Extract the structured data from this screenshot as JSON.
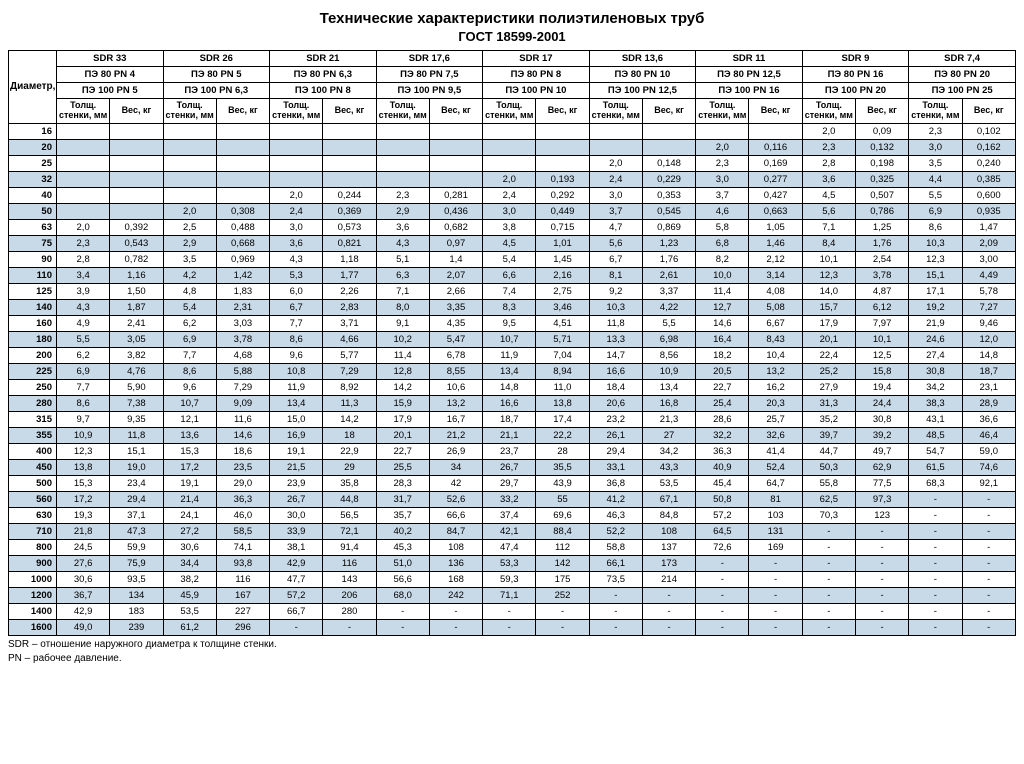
{
  "title": "Технические характеристики полиэтиленовых труб",
  "subtitle": "ГОСТ 18599-2001",
  "diam_label": "Диаметр, мм",
  "wall_label": "Толщ. стенки, мм",
  "weight_label": "Вес, кг",
  "footnote1": "SDR – отношение наружного диаметра к толщине стенки.",
  "footnote2": "PN – рабочее давление.",
  "colors": {
    "alt_row": "#c8d9e8",
    "border": "#000000",
    "bg": "#ffffff"
  },
  "groups": [
    {
      "sdr": "SDR 33",
      "pe80": "ПЭ 80 PN 4",
      "pe100": "ПЭ 100 PN 5"
    },
    {
      "sdr": "SDR 26",
      "pe80": "ПЭ 80 PN 5",
      "pe100": "ПЭ 100 PN 6,3"
    },
    {
      "sdr": "SDR 21",
      "pe80": "ПЭ 80 PN 6,3",
      "pe100": "ПЭ 100 PN 8"
    },
    {
      "sdr": "SDR 17,6",
      "pe80": "ПЭ 80 PN 7,5",
      "pe100": "ПЭ 100 PN 9,5"
    },
    {
      "sdr": "SDR 17",
      "pe80": "ПЭ 80 PN 8",
      "pe100": "ПЭ 100 PN 10"
    },
    {
      "sdr": "SDR 13,6",
      "pe80": "ПЭ 80 PN 10",
      "pe100": "ПЭ 100 PN 12,5"
    },
    {
      "sdr": "SDR 11",
      "pe80": "ПЭ 80 PN 12,5",
      "pe100": "ПЭ 100 PN 16"
    },
    {
      "sdr": "SDR 9",
      "pe80": "ПЭ 80 PN 16",
      "pe100": "ПЭ 100 PN 20"
    },
    {
      "sdr": "SDR 7,4",
      "pe80": "ПЭ 80 PN 20",
      "pe100": "ПЭ 100 PN 25"
    }
  ],
  "rows": [
    {
      "d": "16",
      "v": [
        "",
        "",
        "",
        "",
        "",
        "",
        "",
        "",
        "",
        "",
        "",
        "",
        "",
        "",
        "2,0",
        "0,09",
        "2,3",
        "0,102"
      ]
    },
    {
      "d": "20",
      "v": [
        "",
        "",
        "",
        "",
        "",
        "",
        "",
        "",
        "",
        "",
        "",
        "",
        "2,0",
        "0,116",
        "2,3",
        "0,132",
        "3,0",
        "0,162"
      ]
    },
    {
      "d": "25",
      "v": [
        "",
        "",
        "",
        "",
        "",
        "",
        "",
        "",
        "",
        "",
        "2,0",
        "0,148",
        "2,3",
        "0,169",
        "2,8",
        "0,198",
        "3,5",
        "0,240"
      ]
    },
    {
      "d": "32",
      "v": [
        "",
        "",
        "",
        "",
        "",
        "",
        "",
        "",
        "2,0",
        "0,193",
        "2,4",
        "0,229",
        "3,0",
        "0,277",
        "3,6",
        "0,325",
        "4,4",
        "0,385"
      ]
    },
    {
      "d": "40",
      "v": [
        "",
        "",
        "",
        "",
        "2,0",
        "0,244",
        "2,3",
        "0,281",
        "2,4",
        "0,292",
        "3,0",
        "0,353",
        "3,7",
        "0,427",
        "4,5",
        "0,507",
        "5,5",
        "0,600"
      ]
    },
    {
      "d": "50",
      "v": [
        "",
        "",
        "2,0",
        "0,308",
        "2,4",
        "0,369",
        "2,9",
        "0,436",
        "3,0",
        "0,449",
        "3,7",
        "0,545",
        "4,6",
        "0,663",
        "5,6",
        "0,786",
        "6,9",
        "0,935"
      ]
    },
    {
      "d": "63",
      "v": [
        "2,0",
        "0,392",
        "2,5",
        "0,488",
        "3,0",
        "0,573",
        "3,6",
        "0,682",
        "3,8",
        "0,715",
        "4,7",
        "0,869",
        "5,8",
        "1,05",
        "7,1",
        "1,25",
        "8,6",
        "1,47"
      ]
    },
    {
      "d": "75",
      "v": [
        "2,3",
        "0,543",
        "2,9",
        "0,668",
        "3,6",
        "0,821",
        "4,3",
        "0,97",
        "4,5",
        "1,01",
        "5,6",
        "1,23",
        "6,8",
        "1,46",
        "8,4",
        "1,76",
        "10,3",
        "2,09"
      ]
    },
    {
      "d": "90",
      "v": [
        "2,8",
        "0,782",
        "3,5",
        "0,969",
        "4,3",
        "1,18",
        "5,1",
        "1,4",
        "5,4",
        "1,45",
        "6,7",
        "1,76",
        "8,2",
        "2,12",
        "10,1",
        "2,54",
        "12,3",
        "3,00"
      ]
    },
    {
      "d": "110",
      "v": [
        "3,4",
        "1,16",
        "4,2",
        "1,42",
        "5,3",
        "1,77",
        "6,3",
        "2,07",
        "6,6",
        "2,16",
        "8,1",
        "2,61",
        "10,0",
        "3,14",
        "12,3",
        "3,78",
        "15,1",
        "4,49"
      ]
    },
    {
      "d": "125",
      "v": [
        "3,9",
        "1,50",
        "4,8",
        "1,83",
        "6,0",
        "2,26",
        "7,1",
        "2,66",
        "7,4",
        "2,75",
        "9,2",
        "3,37",
        "11,4",
        "4,08",
        "14,0",
        "4,87",
        "17,1",
        "5,78"
      ]
    },
    {
      "d": "140",
      "v": [
        "4,3",
        "1,87",
        "5,4",
        "2,31",
        "6,7",
        "2,83",
        "8,0",
        "3,35",
        "8,3",
        "3,46",
        "10,3",
        "4,22",
        "12,7",
        "5,08",
        "15,7",
        "6,12",
        "19,2",
        "7,27"
      ]
    },
    {
      "d": "160",
      "v": [
        "4,9",
        "2,41",
        "6,2",
        "3,03",
        "7,7",
        "3,71",
        "9,1",
        "4,35",
        "9,5",
        "4,51",
        "11,8",
        "5,5",
        "14,6",
        "6,67",
        "17,9",
        "7,97",
        "21,9",
        "9,46"
      ]
    },
    {
      "d": "180",
      "v": [
        "5,5",
        "3,05",
        "6,9",
        "3,78",
        "8,6",
        "4,66",
        "10,2",
        "5,47",
        "10,7",
        "5,71",
        "13,3",
        "6,98",
        "16,4",
        "8,43",
        "20,1",
        "10,1",
        "24,6",
        "12,0"
      ]
    },
    {
      "d": "200",
      "v": [
        "6,2",
        "3,82",
        "7,7",
        "4,68",
        "9,6",
        "5,77",
        "11,4",
        "6,78",
        "11,9",
        "7,04",
        "14,7",
        "8,56",
        "18,2",
        "10,4",
        "22,4",
        "12,5",
        "27,4",
        "14,8"
      ]
    },
    {
      "d": "225",
      "v": [
        "6,9",
        "4,76",
        "8,6",
        "5,88",
        "10,8",
        "7,29",
        "12,8",
        "8,55",
        "13,4",
        "8,94",
        "16,6",
        "10,9",
        "20,5",
        "13,2",
        "25,2",
        "15,8",
        "30,8",
        "18,7"
      ]
    },
    {
      "d": "250",
      "v": [
        "7,7",
        "5,90",
        "9,6",
        "7,29",
        "11,9",
        "8,92",
        "14,2",
        "10,6",
        "14,8",
        "11,0",
        "18,4",
        "13,4",
        "22,7",
        "16,2",
        "27,9",
        "19,4",
        "34,2",
        "23,1"
      ]
    },
    {
      "d": "280",
      "v": [
        "8,6",
        "7,38",
        "10,7",
        "9,09",
        "13,4",
        "11,3",
        "15,9",
        "13,2",
        "16,6",
        "13,8",
        "20,6",
        "16,8",
        "25,4",
        "20,3",
        "31,3",
        "24,4",
        "38,3",
        "28,9"
      ]
    },
    {
      "d": "315",
      "v": [
        "9,7",
        "9,35",
        "12,1",
        "11,6",
        "15,0",
        "14,2",
        "17,9",
        "16,7",
        "18,7",
        "17,4",
        "23,2",
        "21,3",
        "28,6",
        "25,7",
        "35,2",
        "30,8",
        "43,1",
        "36,6"
      ]
    },
    {
      "d": "355",
      "v": [
        "10,9",
        "11,8",
        "13,6",
        "14,6",
        "16,9",
        "18",
        "20,1",
        "21,2",
        "21,1",
        "22,2",
        "26,1",
        "27",
        "32,2",
        "32,6",
        "39,7",
        "39,2",
        "48,5",
        "46,4"
      ]
    },
    {
      "d": "400",
      "v": [
        "12,3",
        "15,1",
        "15,3",
        "18,6",
        "19,1",
        "22,9",
        "22,7",
        "26,9",
        "23,7",
        "28",
        "29,4",
        "34,2",
        "36,3",
        "41,4",
        "44,7",
        "49,7",
        "54,7",
        "59,0"
      ]
    },
    {
      "d": "450",
      "v": [
        "13,8",
        "19,0",
        "17,2",
        "23,5",
        "21,5",
        "29",
        "25,5",
        "34",
        "26,7",
        "35,5",
        "33,1",
        "43,3",
        "40,9",
        "52,4",
        "50,3",
        "62,9",
        "61,5",
        "74,6"
      ]
    },
    {
      "d": "500",
      "v": [
        "15,3",
        "23,4",
        "19,1",
        "29,0",
        "23,9",
        "35,8",
        "28,3",
        "42",
        "29,7",
        "43,9",
        "36,8",
        "53,5",
        "45,4",
        "64,7",
        "55,8",
        "77,5",
        "68,3",
        "92,1"
      ]
    },
    {
      "d": "560",
      "v": [
        "17,2",
        "29,4",
        "21,4",
        "36,3",
        "26,7",
        "44,8",
        "31,7",
        "52,6",
        "33,2",
        "55",
        "41,2",
        "67,1",
        "50,8",
        "81",
        "62,5",
        "97,3",
        "-",
        "-"
      ]
    },
    {
      "d": "630",
      "v": [
        "19,3",
        "37,1",
        "24,1",
        "46,0",
        "30,0",
        "56,5",
        "35,7",
        "66,6",
        "37,4",
        "69,6",
        "46,3",
        "84,8",
        "57,2",
        "103",
        "70,3",
        "123",
        "-",
        "-"
      ]
    },
    {
      "d": "710",
      "v": [
        "21,8",
        "47,3",
        "27,2",
        "58,5",
        "33,9",
        "72,1",
        "40,2",
        "84,7",
        "42,1",
        "88,4",
        "52,2",
        "108",
        "64,5",
        "131",
        "-",
        "-",
        "-",
        "-"
      ]
    },
    {
      "d": "800",
      "v": [
        "24,5",
        "59,9",
        "30,6",
        "74,1",
        "38,1",
        "91,4",
        "45,3",
        "108",
        "47,4",
        "112",
        "58,8",
        "137",
        "72,6",
        "169",
        "-",
        "-",
        "-",
        "-"
      ]
    },
    {
      "d": "900",
      "v": [
        "27,6",
        "75,9",
        "34,4",
        "93,8",
        "42,9",
        "116",
        "51,0",
        "136",
        "53,3",
        "142",
        "66,1",
        "173",
        "-",
        "-",
        "-",
        "-",
        "-",
        "-"
      ]
    },
    {
      "d": "1000",
      "v": [
        "30,6",
        "93,5",
        "38,2",
        "116",
        "47,7",
        "143",
        "56,6",
        "168",
        "59,3",
        "175",
        "73,5",
        "214",
        "-",
        "-",
        "-",
        "-",
        "-",
        "-"
      ]
    },
    {
      "d": "1200",
      "v": [
        "36,7",
        "134",
        "45,9",
        "167",
        "57,2",
        "206",
        "68,0",
        "242",
        "71,1",
        "252",
        "-",
        "-",
        "-",
        "-",
        "-",
        "-",
        "-",
        "-"
      ]
    },
    {
      "d": "1400",
      "v": [
        "42,9",
        "183",
        "53,5",
        "227",
        "66,7",
        "280",
        "-",
        "-",
        "-",
        "-",
        "-",
        "-",
        "-",
        "-",
        "-",
        "-",
        "-",
        "-"
      ]
    },
    {
      "d": "1600",
      "v": [
        "49,0",
        "239",
        "61,2",
        "296",
        "-",
        "-",
        "-",
        "-",
        "-",
        "-",
        "-",
        "-",
        "-",
        "-",
        "-",
        "-",
        "-",
        "-"
      ]
    }
  ]
}
